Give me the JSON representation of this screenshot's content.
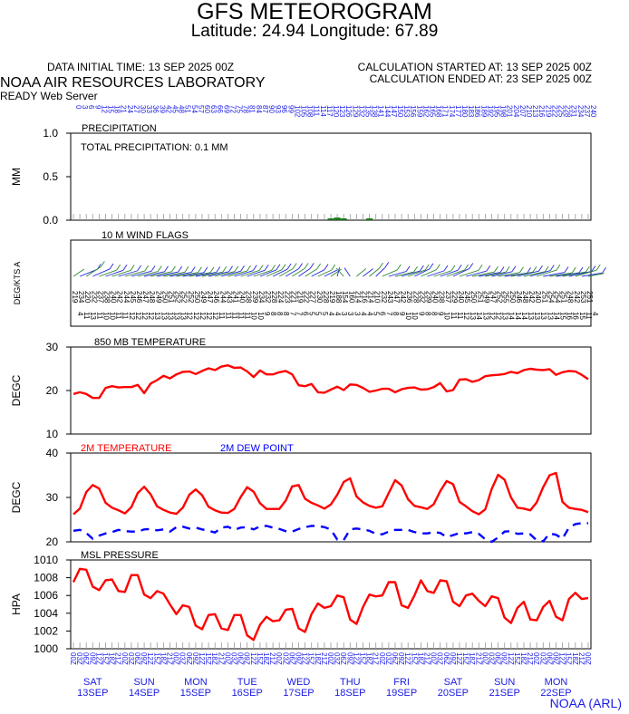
{
  "header": {
    "title": "GFS METEOROGRAM",
    "subtitle": "Latitude: 24.94 Longitude:  67.89",
    "data_initial_time": "DATA INITIAL TIME: 13 SEP 2025 00Z",
    "calc_started": "CALCULATION STARTED AT: 13 SEP 2025 00Z",
    "calc_ended": "CALCULATION ENDED AT: 23 SEP 2025 00Z",
    "lab": "NOAA AIR RESOURCES LABORATORY",
    "server": "READY Web Server",
    "credit": "NOAA (ARL)"
  },
  "colors": {
    "temperature": "#ff0000",
    "dewpoint": "#0000ff",
    "axis_labels": "#1a1ae6",
    "precip": "#1a7a1a",
    "wind_flags_a": "#2a8a2a",
    "wind_flags_b": "#2424e0"
  },
  "chart_data": [
    {
      "type": "bar",
      "panel": "precipitation",
      "title": "PRECIPITATION",
      "annotation": "TOTAL PRECIPITATION:   0.1 MM",
      "ylabel": "MM",
      "yticks": [
        "1.0",
        "0.5",
        "0.0"
      ],
      "ylim": [
        0,
        1
      ],
      "hour_labels": [
        "0",
        "3",
        "6",
        "9",
        "12",
        "15",
        "18",
        "21",
        "24",
        "27",
        "30",
        "33",
        "36",
        "39",
        "42",
        "45",
        "48",
        "51",
        "54",
        "57",
        "60",
        "63",
        "66",
        "69",
        "72",
        "75",
        "78",
        "81",
        "84",
        "87",
        "90",
        "93",
        "96",
        "99",
        "102",
        "105",
        "108",
        "111",
        "114",
        "117",
        "120",
        "123",
        "126",
        "129",
        "132",
        "135",
        "138",
        "141",
        "144",
        "147",
        "150",
        "153",
        "156",
        "159",
        "162",
        "165",
        "168",
        "171",
        "174",
        "177",
        "180",
        "183",
        "186",
        "189",
        "192",
        "195",
        "198",
        "201",
        "204",
        "207",
        "210",
        "213",
        "216",
        "219",
        "222",
        "225",
        "228",
        "231",
        "234",
        "237",
        "240"
      ],
      "values": [
        0,
        0,
        0,
        0,
        0,
        0,
        0,
        0,
        0,
        0,
        0,
        0,
        0,
        0,
        0,
        0,
        0,
        0,
        0,
        0,
        0,
        0,
        0,
        0,
        0,
        0,
        0,
        0,
        0,
        0,
        0,
        0,
        0,
        0,
        0,
        0,
        0,
        0,
        0,
        0,
        0.02,
        0.03,
        0.02,
        0,
        0,
        0,
        0.01,
        0,
        0,
        0,
        0,
        0,
        0,
        0,
        0,
        0,
        0,
        0,
        0,
        0,
        0,
        0,
        0,
        0,
        0,
        0,
        0,
        0,
        0,
        0,
        0,
        0,
        0,
        0,
        0,
        0,
        0,
        0,
        0,
        0,
        0
      ]
    },
    {
      "type": "other",
      "panel": "wind",
      "title": "10 M  WIND FLAGS",
      "ylabel": "DEG/KTS  A",
      "directions": [
        219,
        234,
        220,
        232,
        237,
        238,
        240,
        242,
        244,
        245,
        246,
        247,
        248,
        249,
        250,
        251,
        252,
        252,
        252,
        250,
        249,
        247,
        246,
        244,
        243,
        241,
        240,
        238,
        239,
        234,
        232,
        228,
        224,
        223,
        221,
        219,
        222,
        227,
        230,
        228,
        219,
        188,
        154,
        160,
        214,
        216,
        214,
        210,
        232,
        243,
        247,
        242,
        236,
        228,
        232,
        239,
        240,
        238,
        237,
        229,
        240,
        245,
        250,
        251,
        249,
        247,
        252,
        255,
        250,
        246,
        248,
        242,
        240,
        251,
        254,
        254,
        251,
        248,
        242,
        253,
        251
      ],
      "speeds": [
        4,
        11,
        13,
        11,
        10,
        10,
        11,
        11,
        12,
        12,
        12,
        12,
        13,
        13,
        13,
        13,
        13,
        12,
        12,
        12,
        12,
        12,
        11,
        11,
        11,
        11,
        11,
        10,
        10,
        9,
        8,
        8,
        8,
        7,
        7,
        6,
        5,
        5,
        5,
        4,
        4,
        3,
        3,
        3,
        4,
        4,
        5,
        6,
        7,
        8,
        9,
        10,
        10,
        9,
        8,
        8,
        9,
        10,
        11,
        11,
        12,
        13,
        14,
        13,
        12,
        12,
        13,
        14,
        14,
        14,
        13,
        13,
        13,
        13,
        14,
        15,
        16,
        16,
        15,
        11,
        4
      ]
    },
    {
      "type": "line",
      "panel": "850mb_temperature",
      "title": "850 MB  TEMPERATURE",
      "ylabel": "DEGC",
      "yticks": [
        "30",
        "20",
        "10"
      ],
      "ylim": [
        10,
        30
      ],
      "series": [
        {
          "name": "850 MB  TEMPERATURE",
          "values": [
            19.2,
            19.6,
            19.2,
            18.3,
            18.3,
            20.6,
            21.0,
            20.7,
            20.8,
            20.8,
            21.3,
            19.4,
            21.6,
            22.4,
            23.4,
            22.8,
            23.7,
            24.3,
            24.4,
            23.8,
            24.5,
            25.1,
            24.7,
            25.5,
            25.8,
            25.2,
            25.3,
            24.4,
            23.1,
            24.6,
            23.7,
            23.7,
            24.2,
            24.5,
            23.7,
            21.2,
            21.0,
            21.5,
            19.6,
            19.5,
            20.2,
            20.9,
            20.1,
            21.4,
            21.3,
            20.6,
            19.7,
            20.0,
            20.4,
            20.4,
            19.6,
            20.3,
            20.6,
            20.7,
            20.2,
            20.3,
            20.8,
            21.7,
            19.8,
            20.1,
            22.5,
            22.6,
            22.0,
            22.4,
            23.3,
            23.5,
            23.6,
            23.8,
            24.3,
            24.0,
            24.7,
            25.0,
            24.8,
            24.7,
            24.9,
            23.6,
            24.2,
            24.5,
            24.4,
            23.6,
            22.6
          ]
        }
      ]
    },
    {
      "type": "line",
      "panel": "2m_temperature_dewpoint",
      "legend": [
        "2M TEMPERATURE",
        "2M   DEW POINT"
      ],
      "ylabel": "DEGC",
      "yticks": [
        "40",
        "30",
        "20"
      ],
      "ylim": [
        20,
        40
      ],
      "series": [
        {
          "name": "2M TEMPERATURE",
          "values": [
            26.2,
            27.5,
            31.2,
            32.8,
            32.0,
            28.8,
            27.7,
            27.1,
            26.4,
            27.8,
            31.0,
            32.4,
            30.7,
            28.0,
            27.2,
            26.6,
            26.3,
            27.7,
            30.6,
            31.8,
            30.5,
            27.9,
            27.1,
            26.6,
            26.5,
            27.4,
            30.1,
            32.3,
            31.3,
            28.7,
            27.4,
            27.4,
            27.4,
            29.3,
            32.5,
            32.8,
            29.7,
            28.8,
            28.2,
            27.5,
            28.4,
            30.6,
            33.5,
            34.3,
            30.2,
            28.9,
            28.1,
            27.7,
            28.0,
            31.0,
            33.9,
            32.7,
            29.6,
            28.1,
            27.8,
            27.4,
            28.5,
            31.4,
            33.7,
            33.0,
            29.0,
            28.0,
            26.9,
            26.2,
            27.3,
            31.9,
            35.1,
            34.0,
            30.0,
            27.7,
            27.5,
            27.1,
            28.9,
            32.3,
            35.0,
            35.5,
            29.0,
            27.7,
            27.4,
            27.2,
            26.7
          ]
        },
        {
          "name": "2M   DEW POINT",
          "values": [
            22.5,
            22.7,
            22.0,
            20.7,
            21.4,
            21.9,
            22.2,
            22.7,
            22.4,
            22.3,
            22.3,
            22.8,
            22.9,
            22.6,
            22.8,
            22.3,
            23.3,
            23.4,
            23.0,
            23.2,
            22.8,
            22.5,
            22.1,
            23.2,
            23.4,
            22.7,
            23.2,
            23.3,
            22.8,
            23.5,
            23.6,
            23.2,
            22.9,
            22.4,
            22.3,
            22.9,
            23.3,
            23.6,
            23.6,
            23.3,
            22.8,
            20.5,
            20.4,
            22.8,
            23.0,
            22.8,
            22.5,
            21.8,
            21.7,
            22.3,
            22.7,
            22.7,
            22.7,
            22.2,
            21.9,
            21.9,
            22.2,
            22.0,
            21.1,
            21.5,
            22.0,
            21.9,
            22.2,
            21.8,
            20.6,
            20.0,
            21.0,
            22.3,
            22.4,
            21.8,
            21.9,
            21.7,
            20.3,
            20.1,
            21.9,
            21.6,
            20.7,
            23.2,
            24.0,
            24.2,
            24.2
          ]
        }
      ]
    },
    {
      "type": "line",
      "panel": "msl_pressure",
      "title": "MSL PRESSURE",
      "ylabel": "HPA",
      "yticks": [
        "1010",
        "1008",
        "1006",
        "1004",
        "1002",
        "1000"
      ],
      "ylim": [
        1000,
        1010
      ],
      "series": [
        {
          "name": "MSL PRESSURE",
          "values": [
            1007.5,
            1009.0,
            1008.9,
            1007.0,
            1006.6,
            1007.7,
            1007.8,
            1006.5,
            1006.4,
            1008.3,
            1008.3,
            1006.1,
            1005.7,
            1006.5,
            1006.2,
            1005.0,
            1003.9,
            1004.9,
            1004.7,
            1002.6,
            1002.2,
            1003.8,
            1003.9,
            1002.3,
            1002.1,
            1003.8,
            1003.8,
            1001.5,
            1001.0,
            1002.7,
            1003.6,
            1003.1,
            1003.2,
            1004.4,
            1004.5,
            1002.3,
            1001.9,
            1003.9,
            1005.1,
            1004.6,
            1004.8,
            1006.0,
            1005.8,
            1003.3,
            1002.8,
            1004.7,
            1006.1,
            1005.9,
            1006.0,
            1007.5,
            1007.5,
            1004.9,
            1004.6,
            1006.0,
            1007.7,
            1006.5,
            1006.3,
            1007.7,
            1007.6,
            1005.3,
            1004.8,
            1006.0,
            1006.2,
            1005.4,
            1004.8,
            1005.9,
            1005.7,
            1003.5,
            1002.9,
            1004.6,
            1005.3,
            1003.3,
            1003.2,
            1004.7,
            1005.4,
            1003.6,
            1003.2,
            1005.6,
            1006.3,
            1005.6,
            1005.7
          ]
        }
      ]
    }
  ],
  "x_axis": {
    "hour_labels": [
      "0",
      "3",
      "6",
      "9",
      "12",
      "15",
      "18",
      "21",
      "24",
      "27",
      "30",
      "33",
      "36",
      "39",
      "42",
      "45",
      "48",
      "51",
      "54",
      "57",
      "60",
      "63",
      "66",
      "69",
      "72",
      "75",
      "78",
      "81",
      "84",
      "87",
      "90",
      "93",
      "96",
      "99",
      "102",
      "105",
      "108",
      "111",
      "114",
      "117",
      "120",
      "123",
      "126",
      "129",
      "132",
      "135",
      "138",
      "141",
      "144",
      "147",
      "150",
      "153",
      "156",
      "159",
      "162",
      "165",
      "168",
      "171",
      "174",
      "177",
      "180",
      "183",
      "186",
      "189",
      "192",
      "195",
      "198",
      "201",
      "204",
      "207",
      "210",
      "213",
      "216",
      "219",
      "222",
      "225",
      "228",
      "231",
      "234",
      "237",
      "240"
    ],
    "time_labels": [
      "00Z",
      "03Z",
      "06Z",
      "09Z",
      "12Z",
      "15Z",
      "18Z",
      "21Z",
      "00Z",
      "03Z",
      "06Z",
      "09Z",
      "12Z",
      "15Z",
      "18Z",
      "21Z",
      "00Z",
      "03Z",
      "06Z",
      "09Z",
      "12Z",
      "15Z",
      "18Z",
      "21Z",
      "00Z",
      "03Z",
      "06Z",
      "09Z",
      "12Z",
      "15Z",
      "18Z",
      "21Z",
      "00Z",
      "03Z",
      "06Z",
      "09Z",
      "12Z",
      "15Z",
      "18Z",
      "21Z",
      "00Z",
      "03Z",
      "06Z",
      "09Z",
      "12Z",
      "15Z",
      "18Z",
      "21Z",
      "00Z",
      "03Z",
      "06Z",
      "09Z",
      "12Z",
      "15Z",
      "18Z",
      "21Z",
      "00Z",
      "03Z",
      "06Z",
      "09Z",
      "12Z",
      "15Z",
      "18Z",
      "21Z",
      "00Z",
      "03Z",
      "06Z",
      "09Z",
      "12Z",
      "15Z",
      "18Z",
      "21Z",
      "00Z",
      "03Z",
      "06Z",
      "09Z",
      "12Z",
      "15Z",
      "18Z",
      "21Z",
      "00Z"
    ],
    "days": [
      {
        "dow": "SAT",
        "date": "13SEP"
      },
      {
        "dow": "SUN",
        "date": "14SEP"
      },
      {
        "dow": "MON",
        "date": "15SEP"
      },
      {
        "dow": "TUE",
        "date": "16SEP"
      },
      {
        "dow": "WED",
        "date": "17SEP"
      },
      {
        "dow": "THU",
        "date": "18SEP"
      },
      {
        "dow": "FRI",
        "date": "19SEP"
      },
      {
        "dow": "SAT",
        "date": "20SEP"
      },
      {
        "dow": "SUN",
        "date": "21SEP"
      },
      {
        "dow": "MON",
        "date": "22SEP"
      }
    ]
  }
}
